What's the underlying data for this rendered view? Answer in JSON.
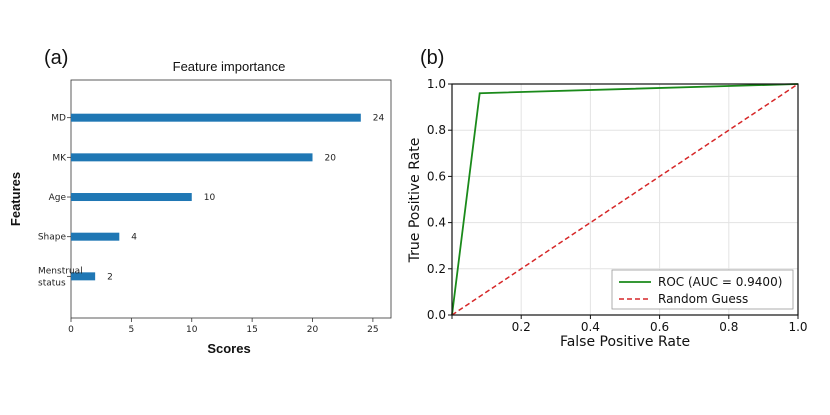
{
  "panels": {
    "a_label": "(a)",
    "b_label": "(b)"
  },
  "chart_data": [
    {
      "type": "bar",
      "orientation": "horizontal",
      "title": "Feature importance",
      "xlabel": "Scores",
      "ylabel": "Features",
      "categories": [
        "MD",
        "MK",
        "Age",
        "Shape",
        "Menstrual status"
      ],
      "category_lines": [
        [
          "MD"
        ],
        [
          "MK"
        ],
        [
          "Age"
        ],
        [
          "Shape"
        ],
        [
          "Menstrual",
          "status"
        ]
      ],
      "values": [
        24,
        20,
        10,
        4,
        2
      ],
      "xlim": [
        0,
        26.5
      ],
      "xticks": [
        0,
        5,
        10,
        15,
        20,
        25
      ],
      "grid": false,
      "colors": {
        "bar": "#1f77b4"
      }
    },
    {
      "type": "line",
      "xlabel": "False Positive Rate",
      "ylabel": "True Positive Rate",
      "xlim": [
        0,
        1
      ],
      "ylim": [
        0,
        1
      ],
      "xticks": [
        "0.0",
        "0.2",
        "0.4",
        "0.6",
        "0.8",
        "1.0"
      ],
      "yticks": [
        "0.0",
        "0.2",
        "0.4",
        "0.6",
        "0.8",
        "1.0"
      ],
      "grid": true,
      "legend": "bottom-right",
      "series": [
        {
          "name": "ROC (AUC = 0.9400)",
          "x": [
            0,
            0.08,
            1
          ],
          "y": [
            0,
            0.96,
            1
          ],
          "color": "#1a8a1a",
          "style": "solid"
        },
        {
          "name": "Random Guess",
          "x": [
            0,
            1
          ],
          "y": [
            0,
            1
          ],
          "color": "#d62728",
          "style": "dashed"
        }
      ]
    }
  ]
}
